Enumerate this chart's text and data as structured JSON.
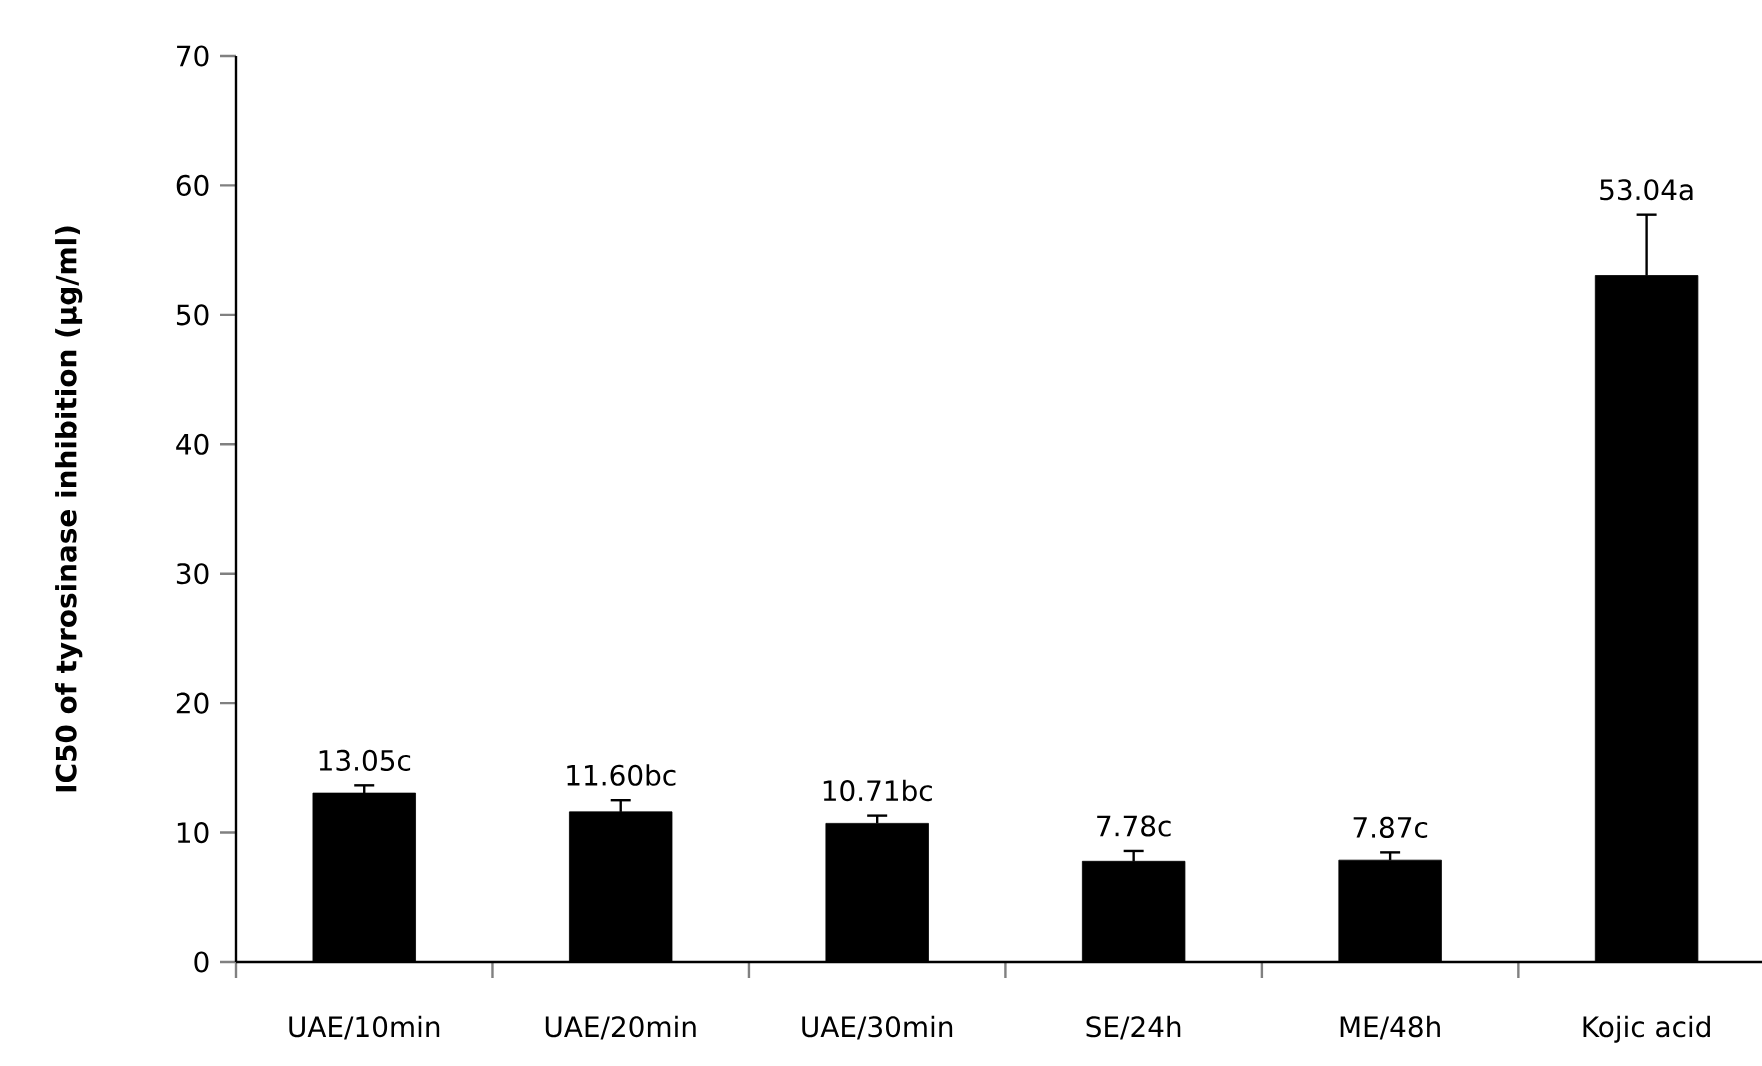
{
  "chart_data": {
    "type": "bar",
    "ylabel": "IC50 of tyrosinase inhibition (µg/ml)",
    "categories": [
      "UAE/10min",
      "UAE/20min",
      "UAE/30min",
      "SE/24h",
      "ME/48h",
      "Kojic acid"
    ],
    "values": [
      13.05,
      11.6,
      10.71,
      7.78,
      7.87,
      53.04
    ],
    "errors": [
      0.6,
      0.9,
      0.6,
      0.8,
      0.6,
      4.7
    ],
    "value_labels": [
      "13.05c",
      "11.60bc",
      "10.71bc",
      "7.78c",
      "7.87c",
      "53.04a"
    ],
    "color": "#000000",
    "ylim": [
      0,
      70
    ],
    "yticks": [
      0,
      10,
      20,
      30,
      40,
      50,
      60,
      70
    ],
    "grid": false
  }
}
